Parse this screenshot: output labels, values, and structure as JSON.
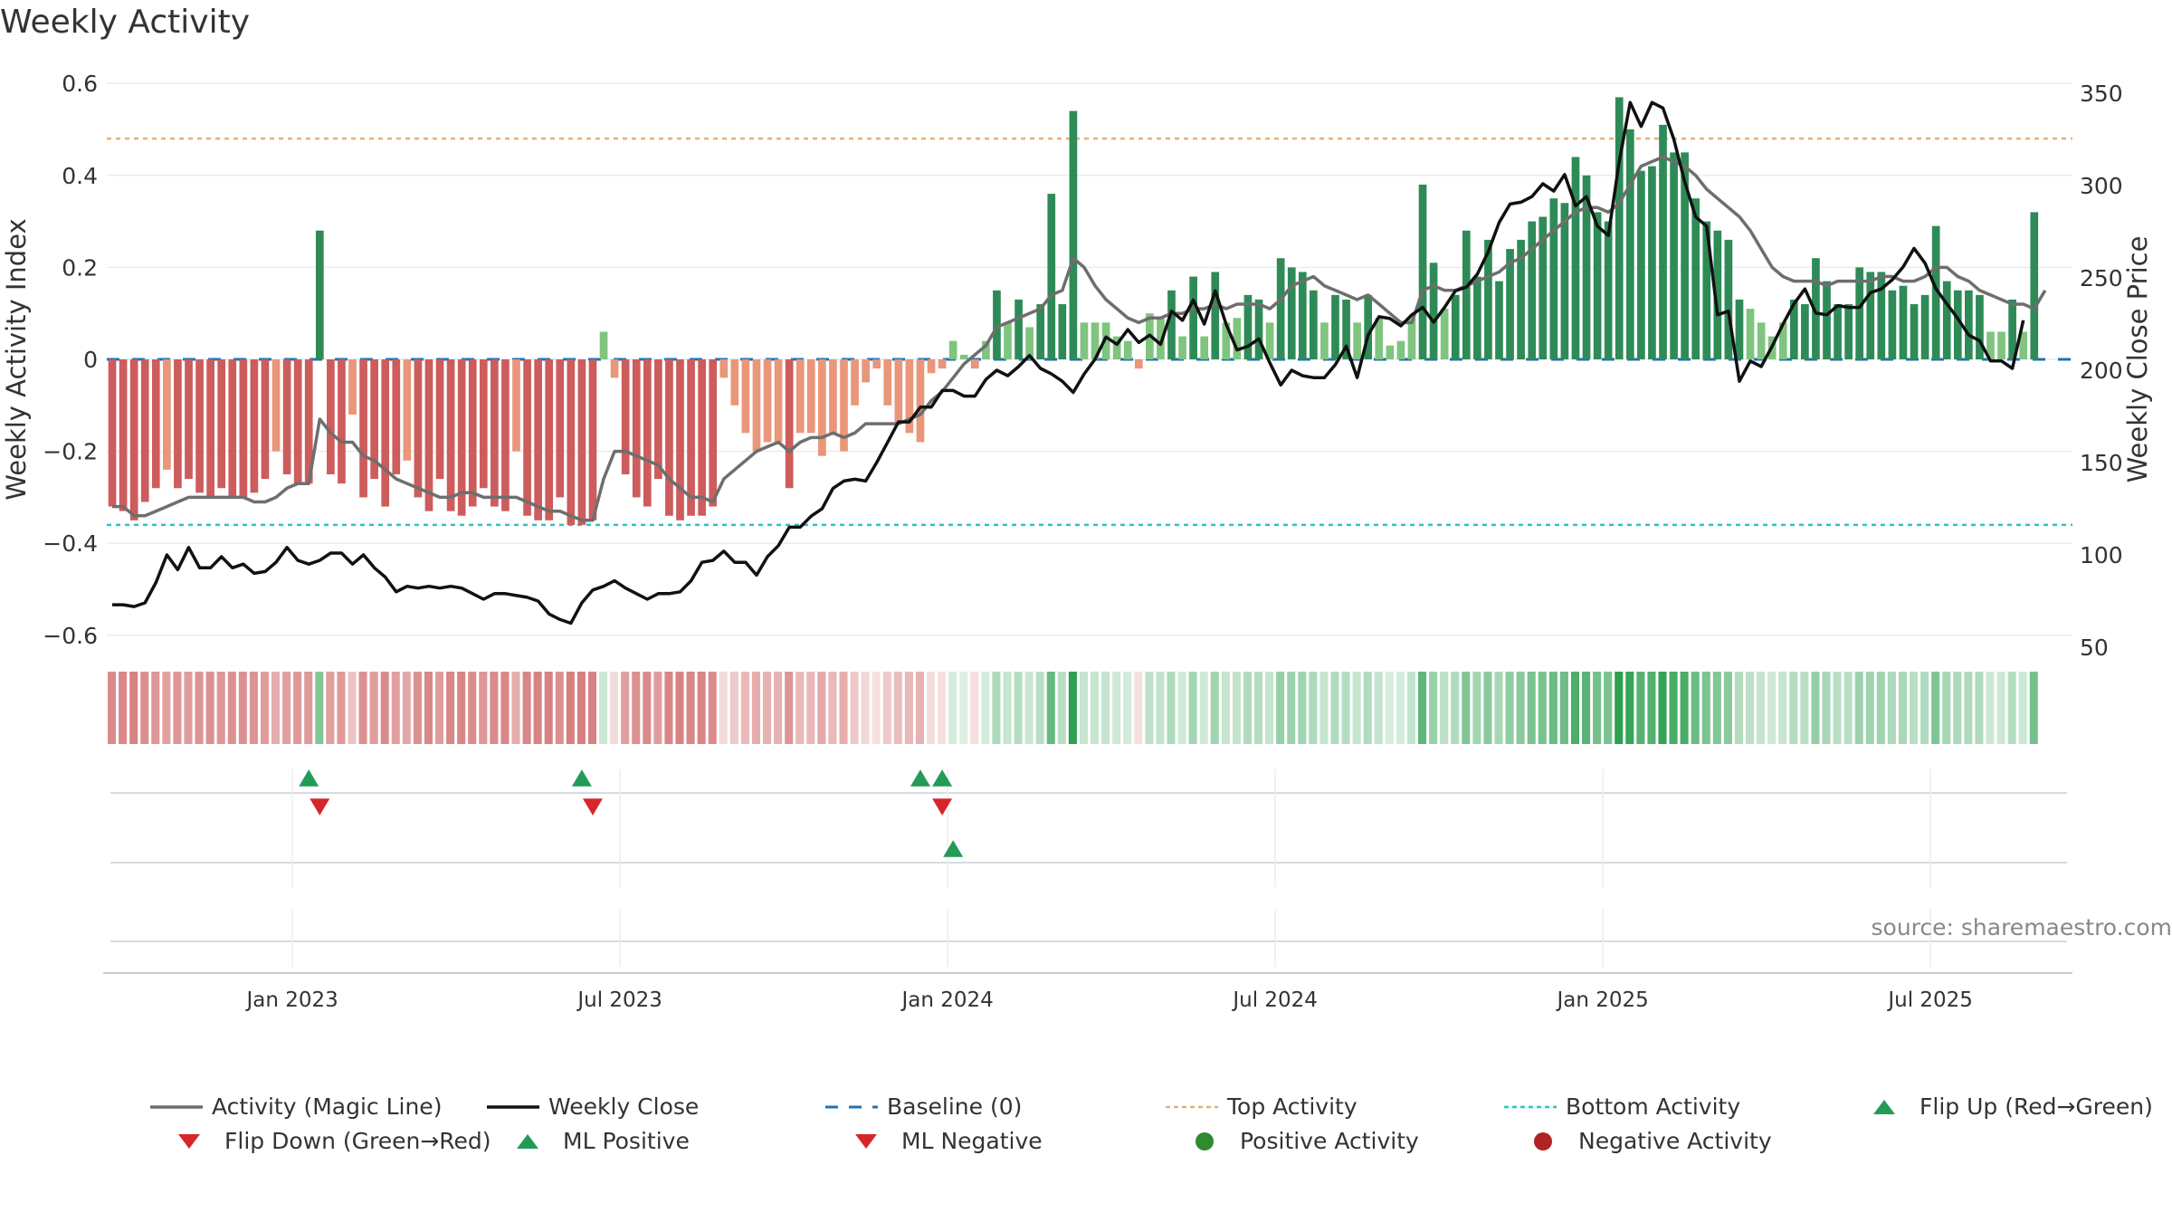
{
  "title": "Weekly Activity",
  "source": "source: sharemaestro.com",
  "colors": {
    "pos_dark": "#2e8b57",
    "pos_light": "#7fc47f",
    "neg_dark": "#cd5c5c",
    "neg_light": "#e9967a",
    "magic_line": "#6e6e6e",
    "close_line": "#111111",
    "baseline": "#2171b5",
    "top": "#e5b07a",
    "bottom": "#2bc4c4",
    "flip_up": "#239b56",
    "flip_down": "#d62728"
  },
  "legend": [
    {
      "label": "Activity (Magic Line)",
      "icon": "solid-line-icon"
    },
    {
      "label": "Weekly Close",
      "icon": "solid-line-icon"
    },
    {
      "label": "Baseline (0)",
      "icon": "dashed-line-icon"
    },
    {
      "label": "Top Activity",
      "icon": "dotted-line-icon"
    },
    {
      "label": "Bottom Activity",
      "icon": "dotted-line-icon"
    },
    {
      "label": "Flip Up (Red→Green)",
      "icon": "triangle-up-icon"
    },
    {
      "label": "Flip Down (Green→Red)",
      "icon": "triangle-down-icon"
    },
    {
      "label": "ML Positive",
      "icon": "triangle-up-icon"
    },
    {
      "label": "ML Negative",
      "icon": "triangle-down-icon"
    },
    {
      "label": "Positive Activity",
      "icon": "circle-icon"
    },
    {
      "label": "Negative Activity",
      "icon": "circle-icon"
    }
  ],
  "chart_data": {
    "type": "bar",
    "title": "Weekly Activity",
    "ylabel": "Weekly Activity Index",
    "y2label": "Weekly Close Price",
    "ylim": [
      -0.62,
      0.62
    ],
    "yticks": [
      0.6,
      0.4,
      0.2,
      0,
      -0.2,
      -0.4,
      -0.6
    ],
    "ytick_labels": [
      "0.6",
      "0.4",
      "0.2",
      "0",
      "−0.2",
      "−0.4",
      "−0.6"
    ],
    "y2lim": [
      50,
      350
    ],
    "y2ticks": [
      350,
      300,
      250,
      200,
      150,
      100,
      50
    ],
    "y2tick_labels": [
      "350",
      "300",
      "250",
      "200",
      "150",
      "100",
      "50"
    ],
    "xticks": [
      {
        "label": "Jan 2023",
        "week": 17
      },
      {
        "label": "Jul 2023",
        "week": 47
      },
      {
        "label": "Jan 2024",
        "week": 77
      },
      {
        "label": "Jul 2024",
        "week": 107
      },
      {
        "label": "Jan 2025",
        "week": 137
      },
      {
        "label": "Jul 2025",
        "week": 167
      }
    ],
    "top_activity": 0.48,
    "bottom_activity": -0.36,
    "baseline": 0,
    "weeks": 180,
    "activity": [
      -0.32,
      -0.33,
      -0.35,
      -0.31,
      -0.28,
      -0.24,
      -0.28,
      -0.26,
      -0.29,
      -0.3,
      -0.28,
      -0.3,
      -0.3,
      -0.29,
      -0.26,
      -0.2,
      -0.25,
      -0.27,
      -0.27,
      0.28,
      -0.25,
      -0.27,
      -0.12,
      -0.3,
      -0.26,
      -0.32,
      -0.25,
      -0.22,
      -0.3,
      -0.33,
      -0.26,
      -0.33,
      -0.34,
      -0.32,
      -0.28,
      -0.32,
      -0.33,
      -0.2,
      -0.34,
      -0.35,
      -0.35,
      -0.3,
      -0.36,
      -0.36,
      -0.35,
      0.06,
      -0.04,
      -0.25,
      -0.3,
      -0.32,
      -0.26,
      -0.34,
      -0.35,
      -0.34,
      -0.34,
      -0.32,
      -0.04,
      -0.1,
      -0.16,
      -0.2,
      -0.18,
      -0.18,
      -0.28,
      -0.16,
      -0.16,
      -0.21,
      -0.16,
      -0.2,
      -0.1,
      -0.05,
      -0.02,
      -0.1,
      -0.14,
      -0.16,
      -0.18,
      -0.03,
      -0.02,
      0.04,
      0.01,
      -0.02,
      0.04,
      0.15,
      0.08,
      0.13,
      0.07,
      0.12,
      0.36,
      0.12,
      0.54,
      0.08,
      0.08,
      0.08,
      0.05,
      0.04,
      -0.02,
      0.1,
      0.09,
      0.15,
      0.05,
      0.18,
      0.05,
      0.19,
      0.08,
      0.09,
      0.14,
      0.13,
      0.08,
      0.22,
      0.2,
      0.19,
      0.15,
      0.08,
      0.14,
      0.13,
      0.08,
      0.14,
      0.09,
      0.03,
      0.04,
      0.09,
      0.38,
      0.21,
      0.11,
      0.14,
      0.28,
      0.18,
      0.26,
      0.17,
      0.24,
      0.26,
      0.3,
      0.31,
      0.35,
      0.34,
      0.44,
      0.4,
      0.32,
      0.3,
      0.57,
      0.5,
      0.41,
      0.42,
      0.51,
      0.45,
      0.45,
      0.35,
      0.3,
      0.28,
      0.26,
      0.13,
      0.11,
      0.08,
      0.05,
      0.08,
      0.13,
      0.12,
      0.22,
      0.17,
      0.12,
      0.12,
      0.2,
      0.19,
      0.19,
      0.15,
      0.16,
      0.12,
      0.14,
      0.29,
      0.17,
      0.15,
      0.15,
      0.14,
      0.06,
      0.06,
      0.13,
      0.06,
      0.32
    ],
    "magic_line": [
      -0.32,
      -0.32,
      -0.34,
      -0.34,
      -0.33,
      -0.32,
      -0.31,
      -0.3,
      -0.3,
      -0.3,
      -0.3,
      -0.3,
      -0.3,
      -0.31,
      -0.31,
      -0.3,
      -0.28,
      -0.27,
      -0.27,
      -0.13,
      -0.16,
      -0.18,
      -0.18,
      -0.21,
      -0.22,
      -0.24,
      -0.26,
      -0.27,
      -0.28,
      -0.29,
      -0.3,
      -0.3,
      -0.29,
      -0.29,
      -0.3,
      -0.3,
      -0.3,
      -0.3,
      -0.31,
      -0.32,
      -0.33,
      -0.33,
      -0.34,
      -0.35,
      -0.35,
      -0.26,
      -0.2,
      -0.2,
      -0.21,
      -0.22,
      -0.23,
      -0.26,
      -0.28,
      -0.3,
      -0.3,
      -0.31,
      -0.26,
      -0.24,
      -0.22,
      -0.2,
      -0.19,
      -0.18,
      -0.2,
      -0.18,
      -0.17,
      -0.17,
      -0.16,
      -0.17,
      -0.16,
      -0.14,
      -0.14,
      -0.14,
      -0.14,
      -0.13,
      -0.12,
      -0.09,
      -0.07,
      -0.04,
      -0.01,
      0.01,
      0.03,
      0.07,
      0.08,
      0.09,
      0.1,
      0.11,
      0.14,
      0.15,
      0.22,
      0.2,
      0.16,
      0.13,
      0.11,
      0.09,
      0.08,
      0.09,
      0.09,
      0.1,
      0.1,
      0.11,
      0.11,
      0.12,
      0.11,
      0.12,
      0.12,
      0.12,
      0.11,
      0.13,
      0.16,
      0.17,
      0.18,
      0.16,
      0.15,
      0.14,
      0.13,
      0.14,
      0.12,
      0.1,
      0.08,
      0.08,
      0.15,
      0.16,
      0.15,
      0.15,
      0.16,
      0.17,
      0.18,
      0.19,
      0.21,
      0.22,
      0.24,
      0.26,
      0.28,
      0.3,
      0.32,
      0.33,
      0.33,
      0.32,
      0.34,
      0.38,
      0.42,
      0.43,
      0.44,
      0.43,
      0.42,
      0.4,
      0.37,
      0.35,
      0.33,
      0.31,
      0.28,
      0.24,
      0.2,
      0.18,
      0.17,
      0.17,
      0.17,
      0.16,
      0.17,
      0.17,
      0.17,
      0.17,
      0.18,
      0.18,
      0.17,
      0.17,
      0.18,
      0.2,
      0.2,
      0.18,
      0.17,
      0.15,
      0.14,
      0.13,
      0.12,
      0.12,
      0.11,
      0.15
    ],
    "weekly_close": [
      73,
      73,
      72,
      74,
      85,
      100,
      92,
      104,
      93,
      93,
      99,
      93,
      95,
      90,
      91,
      96,
      104,
      97,
      95,
      97,
      101,
      101,
      95,
      100,
      93,
      88,
      80,
      83,
      82,
      83,
      82,
      83,
      82,
      79,
      76,
      79,
      79,
      78,
      77,
      75,
      68,
      65,
      63,
      74,
      81,
      83,
      86,
      82,
      79,
      76,
      79,
      79,
      80,
      86,
      96,
      97,
      102,
      96,
      96,
      89,
      99,
      105,
      115,
      115,
      121,
      125,
      136,
      140,
      141,
      140,
      150,
      161,
      172,
      172,
      180,
      180,
      189,
      189,
      186,
      186,
      195,
      200,
      197,
      202,
      208,
      201,
      198,
      194,
      188,
      198,
      206,
      218,
      214,
      222,
      215,
      219,
      214,
      232,
      227,
      238,
      225,
      243,
      225,
      211,
      213,
      217,
      204,
      192,
      200,
      197,
      196,
      196,
      203,
      213,
      196,
      219,
      229,
      228,
      224,
      230,
      234,
      226,
      234,
      243,
      245,
      252,
      264,
      280,
      290,
      291,
      294,
      301,
      297,
      306,
      289,
      294,
      278,
      273,
      313,
      345,
      332,
      345,
      342,
      325,
      302,
      283,
      278,
      230,
      232,
      194,
      205,
      202,
      213,
      225,
      236,
      244,
      231,
      230,
      235,
      234,
      234,
      242,
      244,
      249,
      256,
      266,
      258,
      244,
      236,
      228,
      219,
      216,
      205,
      205,
      201,
      227
    ],
    "signals": [
      {
        "row": 1,
        "week": 18,
        "type": "flip-up"
      },
      {
        "row": 1,
        "week": 19,
        "type": "flip-down"
      },
      {
        "row": 1,
        "week": 43,
        "type": "flip-up"
      },
      {
        "row": 1,
        "week": 44,
        "type": "flip-down"
      },
      {
        "row": 1,
        "week": 74,
        "type": "flip-up"
      },
      {
        "row": 1,
        "week": 76,
        "type": "flip-down"
      },
      {
        "row": 1,
        "week": 76,
        "type": "flip-up"
      },
      {
        "row": 2,
        "week": 77,
        "type": "ml-positive"
      }
    ]
  }
}
